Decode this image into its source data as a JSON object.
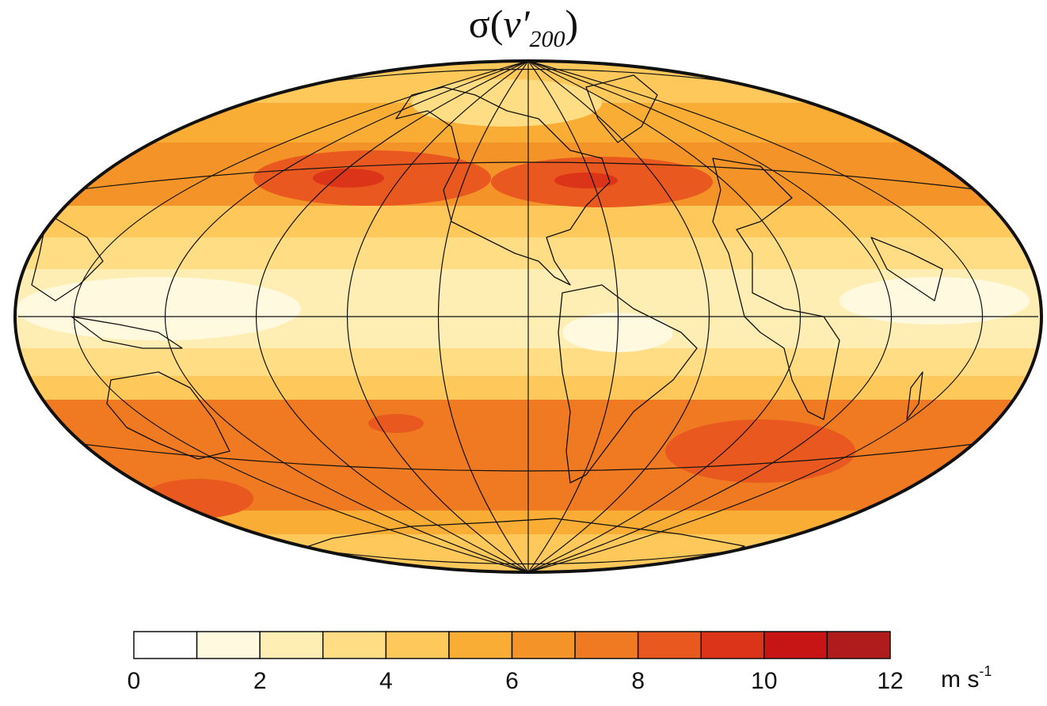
{
  "title": {
    "sigma": "σ",
    "open": "(",
    "var": "v′",
    "sub": "200",
    "close": ")"
  },
  "colorbar": {
    "min": 0,
    "max": 12,
    "colors": [
      "#ffffff",
      "#fff9e0",
      "#ffeeb4",
      "#ffdd85",
      "#ffc85a",
      "#f9ad34",
      "#f49428",
      "#ef7a22",
      "#e8581f",
      "#dc3418",
      "#c71414",
      "#b01c1c"
    ],
    "tick_labels": [
      "0",
      "2",
      "4",
      "6",
      "8",
      "10",
      "12"
    ],
    "units": "m s",
    "units_exp": "-1"
  }
}
